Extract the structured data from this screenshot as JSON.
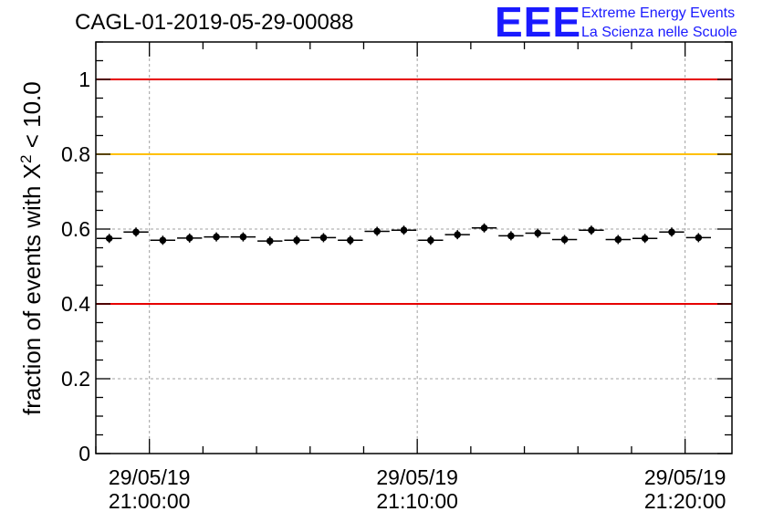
{
  "title": "CAGL-01-2019-05-29-00088",
  "logo": {
    "mark": "EEE",
    "line1": "Extreme Energy Events",
    "line2": "La Scienza nelle Scuole",
    "color": "#1a1aff"
  },
  "chart_data": {
    "type": "scatter",
    "ylabel": "fraction of events with χ² < 10.0",
    "ylabel_parts": {
      "main": "fraction of events with X",
      "sup": "2",
      "tail": " < 10.0"
    },
    "ylim": [
      0,
      1.1
    ],
    "xlim": [
      "2019-05-29 20:58:00",
      "2019-05-29 21:21:45"
    ],
    "yticks": [
      {
        "value": 0,
        "label": "0"
      },
      {
        "value": 0.2,
        "label": "0.2"
      },
      {
        "value": 0.4,
        "label": "0.4"
      },
      {
        "value": 0.6,
        "label": "0.6"
      },
      {
        "value": 0.8,
        "label": "0.8"
      },
      {
        "value": 1,
        "label": "1"
      }
    ],
    "xticks": [
      {
        "time": "2019-05-29 21:00:00",
        "date_label": "29/05/19",
        "time_label": "21:00:00"
      },
      {
        "time": "2019-05-29 21:10:00",
        "date_label": "29/05/19",
        "time_label": "21:10:00"
      },
      {
        "time": "2019-05-29 21:20:00",
        "date_label": "29/05/19",
        "time_label": "21:20:00"
      }
    ],
    "grid": true,
    "reference_lines": [
      {
        "value": 1.0,
        "color": "#e60000"
      },
      {
        "value": 0.8,
        "color": "#ffc000"
      },
      {
        "value": 0.4,
        "color": "#e60000"
      }
    ],
    "bin_width_seconds": 60,
    "points": [
      {
        "x": "2019-05-29 20:58:30",
        "y": 0.575
      },
      {
        "x": "2019-05-29 20:59:30",
        "y": 0.592
      },
      {
        "x": "2019-05-29 21:00:30",
        "y": 0.57
      },
      {
        "x": "2019-05-29 21:01:30",
        "y": 0.576
      },
      {
        "x": "2019-05-29 21:02:30",
        "y": 0.579
      },
      {
        "x": "2019-05-29 21:03:30",
        "y": 0.579
      },
      {
        "x": "2019-05-29 21:04:30",
        "y": 0.568
      },
      {
        "x": "2019-05-29 21:05:30",
        "y": 0.57
      },
      {
        "x": "2019-05-29 21:06:30",
        "y": 0.577
      },
      {
        "x": "2019-05-29 21:07:30",
        "y": 0.57
      },
      {
        "x": "2019-05-29 21:08:30",
        "y": 0.594
      },
      {
        "x": "2019-05-29 21:09:30",
        "y": 0.597
      },
      {
        "x": "2019-05-29 21:10:30",
        "y": 0.57
      },
      {
        "x": "2019-05-29 21:11:30",
        "y": 0.585
      },
      {
        "x": "2019-05-29 21:12:30",
        "y": 0.603
      },
      {
        "x": "2019-05-29 21:13:30",
        "y": 0.582
      },
      {
        "x": "2019-05-29 21:14:30",
        "y": 0.589
      },
      {
        "x": "2019-05-29 21:15:30",
        "y": 0.572
      },
      {
        "x": "2019-05-29 21:16:30",
        "y": 0.597
      },
      {
        "x": "2019-05-29 21:17:30",
        "y": 0.572
      },
      {
        "x": "2019-05-29 21:18:30",
        "y": 0.575
      },
      {
        "x": "2019-05-29 21:19:30",
        "y": 0.592
      },
      {
        "x": "2019-05-29 21:20:30",
        "y": 0.577
      }
    ]
  }
}
